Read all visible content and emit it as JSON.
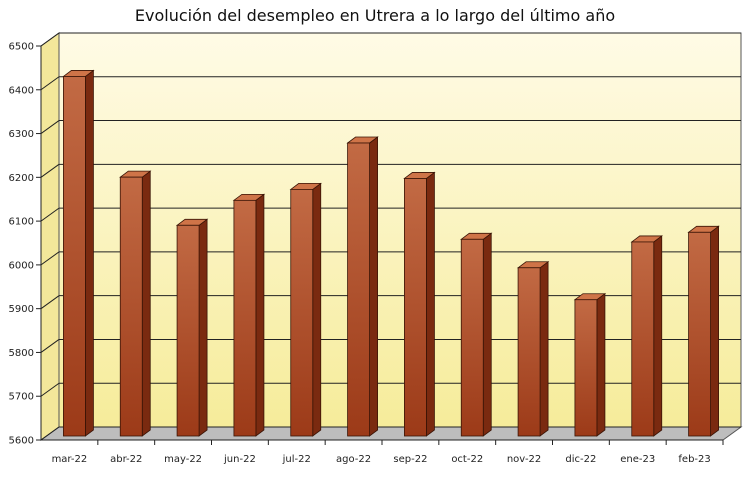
{
  "chart_data": {
    "type": "bar",
    "title": "Evolución del desempleo en Utrera a lo largo del último año",
    "xlabel": "",
    "ylabel": "",
    "categories": [
      "mar-22",
      "abr-22",
      "may-22",
      "jun-22",
      "jul-22",
      "ago-22",
      "sep-22",
      "oct-22",
      "nov-22",
      "dic-22",
      "ene-23",
      "feb-23"
    ],
    "values": [
      6435,
      6205,
      6095,
      6152,
      6177,
      6283,
      6202,
      6063,
      5998,
      5925,
      6057,
      6079
    ],
    "ylim": [
      5600,
      6500
    ],
    "yticks": [
      5600,
      5700,
      5800,
      5900,
      6000,
      6100,
      6200,
      6300,
      6400,
      6500
    ],
    "grid": true,
    "legend": "none",
    "style": {
      "bar_color": "#b4552e",
      "bar_top_color": "#cf7448",
      "bar_side_color": "#7a2a10",
      "wall_color": "#fbf3b6",
      "floor_color": "#bdbdbd"
    }
  }
}
